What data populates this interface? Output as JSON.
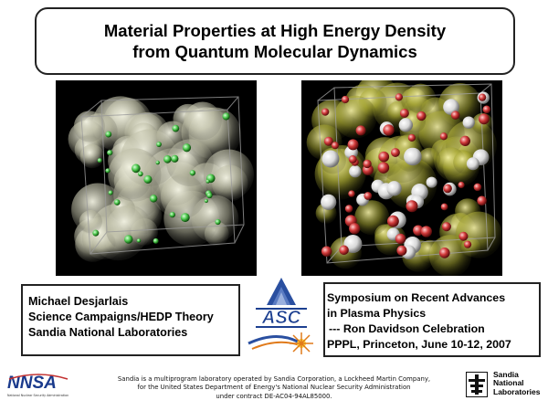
{
  "title": {
    "line1": "Material Properties at High Energy Density",
    "line2": "from Quantum Molecular Dynamics"
  },
  "author_box": {
    "line1": "Michael Desjarlais",
    "line2": "Science Campaigns/HEDP Theory",
    "line3": "Sandia National Laboratories"
  },
  "event_box": {
    "line1": "Symposium on Recent Advances",
    "line2": "in Plasma Physics",
    "line3": "--- Ron Davidson Celebration",
    "line4": "PPPL, Princeton, June 10-12, 2007"
  },
  "asc_logo": {
    "text": "ASC"
  },
  "nnsa_logo": {
    "text": "NNSA",
    "subtext": "National Nuclear Security Administration"
  },
  "footer": {
    "line1": "Sandia is a multiprogram laboratory operated by Sandia Corporation, a Lockheed Martin Company,",
    "line2": "for the United States Department of Energy's National Nuclear Security Administration",
    "line3": "under contract DE-AC04-94AL85000."
  },
  "sandia_logo": {
    "text": "Sandia\nNational\nLaboratories"
  },
  "colors": {
    "atom_green": "#5fd35f",
    "atom_red": "#d23b3b",
    "atom_white": "#e8e8e8",
    "density_left": "#d8d8b8",
    "density_right": "#c8c83a",
    "asc_blue": "#2a4fa0",
    "asc_orange": "#e07a1a"
  }
}
